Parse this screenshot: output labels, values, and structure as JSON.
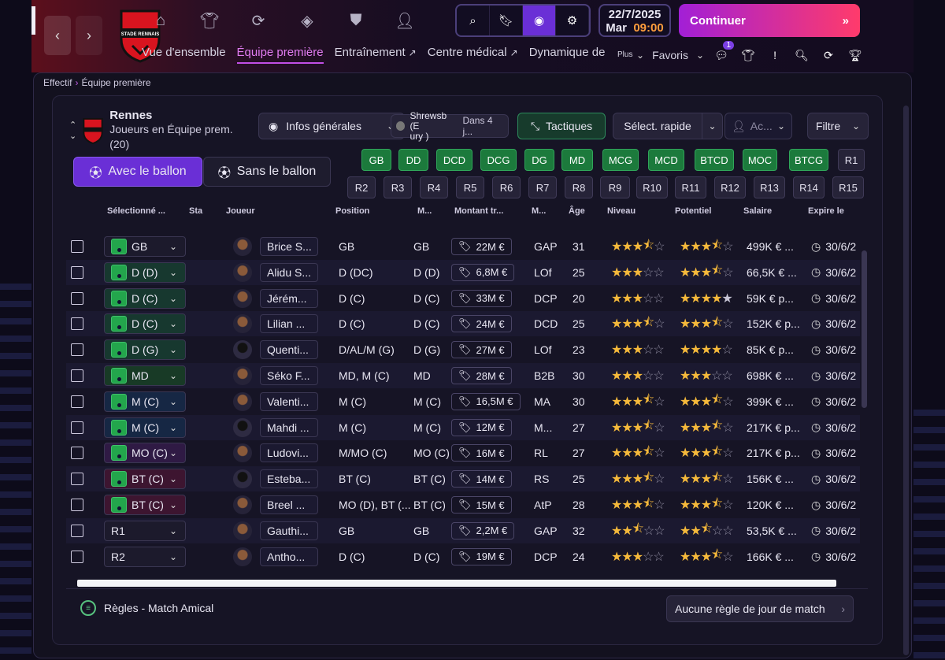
{
  "header": {
    "club_crest_text": "STADE RENNAIS FOOTBALL CLUB",
    "date": "22/7/2025",
    "day": "Mar",
    "time": "09:00",
    "continue_label": "Continuer",
    "tabs": [
      {
        "label": "Vue d'ensemble",
        "active": false,
        "ext": false
      },
      {
        "label": "Équipe première",
        "active": true,
        "ext": false
      },
      {
        "label": "Entraînement",
        "active": false,
        "ext": true
      },
      {
        "label": "Centre médical",
        "active": false,
        "ext": true
      },
      {
        "label": "Dynamique de",
        "active": false,
        "ext": false
      }
    ],
    "more_label": "Plus",
    "favoris_label": "Favoris",
    "notif_count": "1"
  },
  "breadcrumb": {
    "parent": "Effectif",
    "current": "Équipe première"
  },
  "team": {
    "name": "Rennes",
    "subtitle": "Joueurs en Équipe prem.",
    "count": "(20)"
  },
  "toolbar": {
    "view_label": "Infos générales",
    "opponent": "Shrewsbury",
    "opponent_line1": "Shrewsb (E",
    "opponent_line2": "ury )",
    "opponent_when": "Dans 4 j...",
    "tactics_label": "Tactiques",
    "quick_select_label": "Sélect. rapide",
    "actions_label": "Ac...",
    "filter_label": "Filtre"
  },
  "mode": {
    "with_ball": "Avec le ballon",
    "without_ball": "Sans le ballon"
  },
  "positions_row1": [
    "GB",
    "DD",
    "DCD",
    "DCG",
    "DG",
    "MD",
    "MCG",
    "MCD",
    "BTCD",
    "MOC",
    "BTCG",
    "R1"
  ],
  "positions_row2": [
    "R2",
    "R3",
    "R4",
    "R5",
    "R6",
    "R7",
    "R8",
    "R9",
    "R10",
    "R11",
    "R12",
    "R13",
    "R14",
    "R15"
  ],
  "columns": {
    "selected": "Sélectionné ...",
    "status": "Sta",
    "player": "Joueur",
    "position": "Position",
    "match_pos": "M...",
    "fee": "Montant tr...",
    "role": "M...",
    "age": "Âge",
    "level": "Niveau",
    "potential": "Potentiel",
    "salary": "Salaire",
    "expires": "Expire le"
  },
  "players": [
    {
      "sel": "GB",
      "sel_color": "#1c1a2c",
      "pitch": "#23a64c",
      "name": "Brice S...",
      "pos": "GB",
      "mpos": "GB",
      "fee": "22M €",
      "role": "GAP",
      "age": "31",
      "lvl": 3,
      "lvlh": 1,
      "pot": 3,
      "poth": 1,
      "sal": "499K € ...",
      "exp": "30/6/2",
      "dark": false
    },
    {
      "sel": "D (D)",
      "sel_color": "#17382f",
      "pitch": "#23a64c",
      "name": "Alidu S...",
      "pos": "D (DC)",
      "mpos": "D (D)",
      "fee": "6,8M €",
      "role": "LOf",
      "age": "25",
      "lvl": 3,
      "lvlh": 0,
      "pot": 3,
      "poth": 1,
      "sal": "66,5K € ...",
      "exp": "30/6/2",
      "dark": false
    },
    {
      "sel": "D (C)",
      "sel_color": "#17382f",
      "pitch": "#23a64c",
      "name": "Jérém...",
      "pos": "D (C)",
      "mpos": "D (C)",
      "fee": "33M €",
      "role": "DCP",
      "age": "20",
      "lvl": 3,
      "lvlh": 0,
      "pot": 4,
      "poth": 0,
      "potw": 1,
      "sal": "59K € p...",
      "exp": "30/6/2",
      "dark": false
    },
    {
      "sel": "D (C)",
      "sel_color": "#17382f",
      "pitch": "#23a64c",
      "name": "Lilian ...",
      "pos": "D (C)",
      "mpos": "D (C)",
      "fee": "24M €",
      "role": "DCD",
      "age": "25",
      "lvl": 3,
      "lvlh": 1,
      "pot": 3,
      "poth": 1,
      "sal": "152K € p...",
      "exp": "30/6/2",
      "dark": false
    },
    {
      "sel": "D (G)",
      "sel_color": "#17382f",
      "pitch": "#23a64c",
      "name": "Quenti...",
      "pos": "D/AL/M (G)",
      "mpos": "D (G)",
      "fee": "27M €",
      "role": "LOf",
      "age": "23",
      "lvl": 3,
      "lvlh": 0,
      "pot": 4,
      "poth": 0,
      "sal": "85K € p...",
      "exp": "30/6/2",
      "dark": true
    },
    {
      "sel": "MD",
      "sel_color": "#183a26",
      "pitch": "#23a64c",
      "name": "Séko F...",
      "pos": "MD, M (C)",
      "mpos": "MD",
      "fee": "28M €",
      "role": "B2B",
      "age": "30",
      "lvl": 3,
      "lvlh": 0,
      "pot": 3,
      "poth": 0,
      "sal": "698K € ...",
      "exp": "30/6/2",
      "dark": false
    },
    {
      "sel": "M (C)",
      "sel_color": "#162744",
      "pitch": "#23a64c",
      "name": "Valenti...",
      "pos": "M (C)",
      "mpos": "M (C)",
      "fee": "16,5M €",
      "role": "MA",
      "age": "30",
      "lvl": 3,
      "lvlh": 1,
      "pot": 3,
      "poth": 1,
      "sal": "399K € ...",
      "exp": "30/6/2",
      "dark": false
    },
    {
      "sel": "M (C)",
      "sel_color": "#162744",
      "pitch": "#23a64c",
      "name": "Mahdi ...",
      "pos": "M (C)",
      "mpos": "M (C)",
      "fee": "12M €",
      "role": "M...",
      "age": "27",
      "lvl": 3,
      "lvlh": 1,
      "pot": 3,
      "poth": 1,
      "sal": "217K € p...",
      "exp": "30/6/2",
      "dark": true
    },
    {
      "sel": "MO (C)",
      "sel_color": "#2f1a44",
      "pitch": "#23a64c",
      "name": "Ludovi...",
      "pos": "M/MO (C)",
      "mpos": "MO (C)",
      "fee": "16M €",
      "role": "RL",
      "age": "27",
      "lvl": 3,
      "lvlh": 1,
      "pot": 3,
      "poth": 1,
      "sal": "217K € p...",
      "exp": "30/6/2",
      "dark": false
    },
    {
      "sel": "BT (C)",
      "sel_color": "#3d1530",
      "pitch": "#23a64c",
      "name": "Esteba...",
      "pos": "BT (C)",
      "mpos": "BT (C)",
      "fee": "14M €",
      "role": "RS",
      "age": "25",
      "lvl": 3,
      "lvlh": 1,
      "pot": 3,
      "poth": 1,
      "sal": "156K € ...",
      "exp": "30/6/2",
      "dark": true
    },
    {
      "sel": "BT (C)",
      "sel_color": "#3d1530",
      "pitch": "#23a64c",
      "name": "Breel ...",
      "pos": "MO (D), BT (...",
      "mpos": "BT (C)",
      "fee": "15M €",
      "role": "AtP",
      "age": "28",
      "lvl": 3,
      "lvlh": 1,
      "pot": 3,
      "poth": 1,
      "sal": "120K € ...",
      "exp": "30/6/2",
      "dark": false
    },
    {
      "sel": "R1",
      "sel_color": "#1c1a2c",
      "pitch": "",
      "name": "Gauthi...",
      "pos": "GB",
      "mpos": "GB",
      "fee": "2,2M €",
      "role": "GAP",
      "age": "32",
      "lvl": 2,
      "lvlh": 1,
      "pot": 2,
      "poth": 1,
      "sal": "53,5K € ...",
      "exp": "30/6/2",
      "dark": false
    },
    {
      "sel": "R2",
      "sel_color": "#1c1a2c",
      "pitch": "",
      "name": "Antho...",
      "pos": "D (C)",
      "mpos": "D (C)",
      "fee": "19M €",
      "role": "DCP",
      "age": "24",
      "lvl": 3,
      "lvlh": 0,
      "pot": 3,
      "poth": 1,
      "sal": "166K € ...",
      "exp": "30/6/2",
      "dark": false
    }
  ],
  "footer": {
    "rules_label": "Règles - Match Amical",
    "no_rules_label": "Aucune règle de jour de match"
  },
  "colors": {
    "accent": "#c24fe6",
    "green": "#1c7a3c",
    "star": "#f5b93b"
  }
}
